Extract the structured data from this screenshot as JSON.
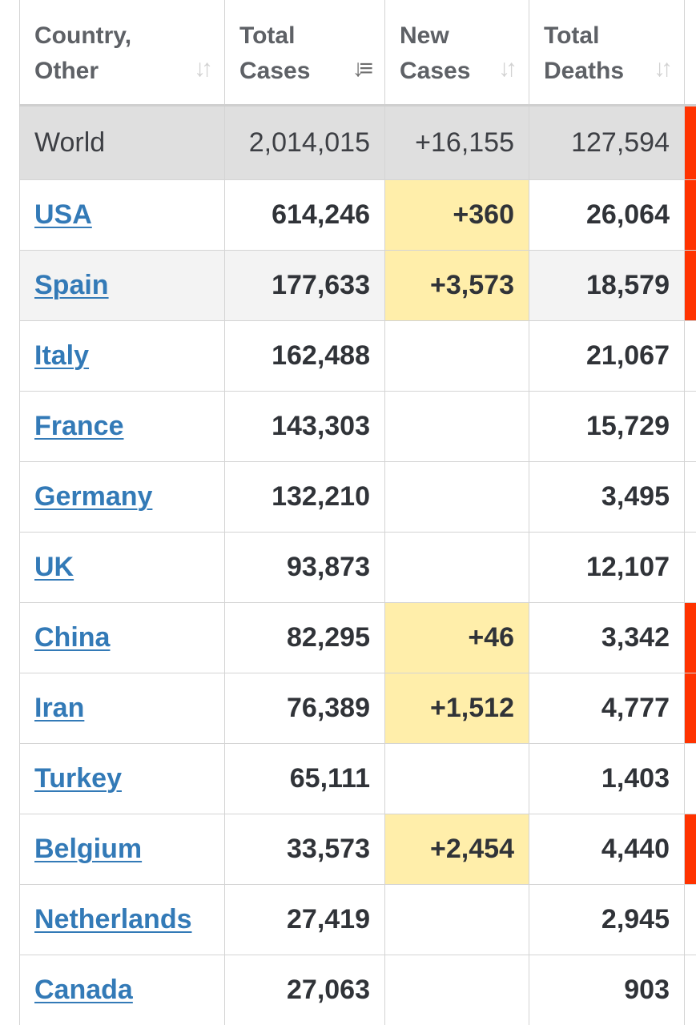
{
  "headers": [
    {
      "label": "Country,\nOther"
    },
    {
      "label": "Total\nCases"
    },
    {
      "label": "New\nCases"
    },
    {
      "label": "Total\nDeaths"
    }
  ],
  "world": {
    "name": "World",
    "total_cases": "2,014,015",
    "new_cases": "+16,155",
    "total_deaths": "127,594"
  },
  "rows": [
    {
      "country": "USA",
      "total_cases": "614,246",
      "new_cases": "+360",
      "total_deaths": "26,064"
    },
    {
      "country": "Spain",
      "total_cases": "177,633",
      "new_cases": "+3,573",
      "total_deaths": "18,579"
    },
    {
      "country": "Italy",
      "total_cases": "162,488",
      "new_cases": "",
      "total_deaths": "21,067"
    },
    {
      "country": "France",
      "total_cases": "143,303",
      "new_cases": "",
      "total_deaths": "15,729"
    },
    {
      "country": "Germany",
      "total_cases": "132,210",
      "new_cases": "",
      "total_deaths": "3,495"
    },
    {
      "country": "UK",
      "total_cases": "93,873",
      "new_cases": "",
      "total_deaths": "12,107"
    },
    {
      "country": "China",
      "total_cases": "82,295",
      "new_cases": "+46",
      "total_deaths": "3,342"
    },
    {
      "country": "Iran",
      "total_cases": "76,389",
      "new_cases": "+1,512",
      "total_deaths": "4,777"
    },
    {
      "country": "Turkey",
      "total_cases": "65,111",
      "new_cases": "",
      "total_deaths": "1,403"
    },
    {
      "country": "Belgium",
      "total_cases": "33,573",
      "new_cases": "+2,454",
      "total_deaths": "4,440"
    },
    {
      "country": "Netherlands",
      "total_cases": "27,419",
      "new_cases": "",
      "total_deaths": "2,945"
    },
    {
      "country": "Canada",
      "total_cases": "27,063",
      "new_cases": "",
      "total_deaths": "903"
    }
  ],
  "colors": {
    "link": "#337ab7",
    "new_cases_highlight": "#ffeeaa",
    "new_deaths_highlight": "#ff3300",
    "world_row_bg": "#dfdfdf"
  },
  "icons": {
    "sort_default": "sort-arrows-icon",
    "sort_active": "sort-descending-icon"
  }
}
